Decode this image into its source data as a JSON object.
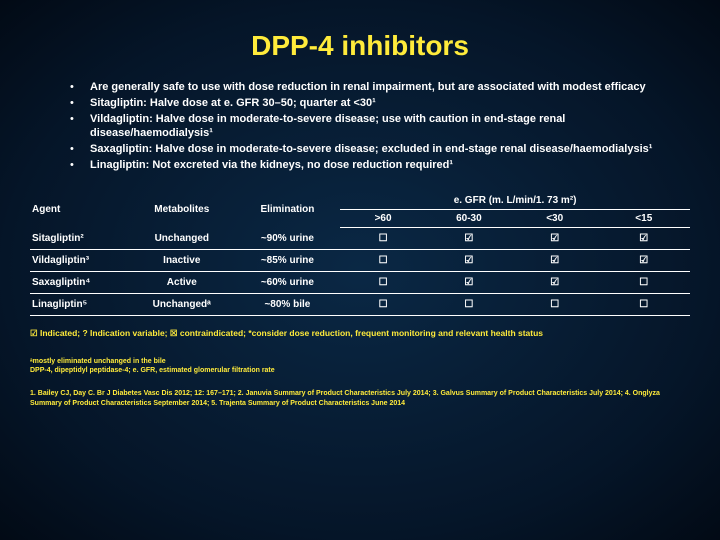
{
  "title": "DPP-4 inhibitors",
  "bullets": [
    "Are generally safe to use with dose reduction in renal impairment, but are associated with modest efficacy",
    "Sitagliptin: Halve dose at e. GFR 30–50; quarter at <30¹",
    "Vildagliptin: Halve dose in moderate-to-severe disease; use with caution in end-stage renal disease/haemodialysis¹",
    "Saxagliptin: Halve dose in moderate-to-severe disease; excluded in end-stage renal disease/haemodialysis¹",
    "Linagliptin: Not excreted via the kidneys, no dose reduction required¹"
  ],
  "table": {
    "egfr_header": "e. GFR (m. L/min/1. 73 m²)",
    "columns": [
      "Agent",
      "Metabolites",
      "Elimination"
    ],
    "egfr_columns": [
      ">60",
      "60-30",
      "<30",
      "<15"
    ],
    "rows": [
      {
        "agent": "Sitagliptin²",
        "metabolites": "Unchanged",
        "elimination": "~90% urine",
        "egfr": [
          "☐",
          "☑",
          "☑",
          "☑"
        ]
      },
      {
        "agent": "Vildagliptin³",
        "metabolites": "Inactive",
        "elimination": "~85% urine",
        "egfr": [
          "☐",
          "☑",
          "☑",
          "☑"
        ]
      },
      {
        "agent": "Saxagliptin⁴",
        "metabolites": "Active",
        "elimination": "~60% urine",
        "egfr": [
          "☐",
          "☑",
          "☑",
          "☐"
        ]
      },
      {
        "agent": "Linagliptin⁵",
        "metabolites": "Unchangedᵃ",
        "elimination": "~80% bile",
        "egfr": [
          "☐",
          "☐",
          "☐",
          "☐"
        ]
      }
    ]
  },
  "legend": "☑ Indicated; ? Indication variable; ☒ contraindicated; *consider dose reduction, frequent monitoring and relevant health status",
  "footnote": "ᵃmostly eliminated unchanged in the bile\nDPP-4, dipeptidyl peptidase-4; e. GFR, estimated glomerular filtration rate",
  "refs": "1. Bailey CJ, Day C. Br J Diabetes Vasc Dis 2012; 12: 167–171; 2. Januvia Summary of Product Characteristics July 2014; 3. Galvus Summary of Product Characteristics July 2014; 4. Onglyza Summary of Product Characteristics September 2014; 5. Trajenta Summary of Product Characteristics June 2014",
  "colors": {
    "accent": "#ffeb3b",
    "text": "#ffffff",
    "bg_inner": "#0a2845",
    "bg_outer": "#020a15"
  },
  "fontsizes": {
    "title": 28,
    "bullet": 11,
    "table": 10,
    "legend": 8.5,
    "footnote": 7,
    "refs": 7
  }
}
